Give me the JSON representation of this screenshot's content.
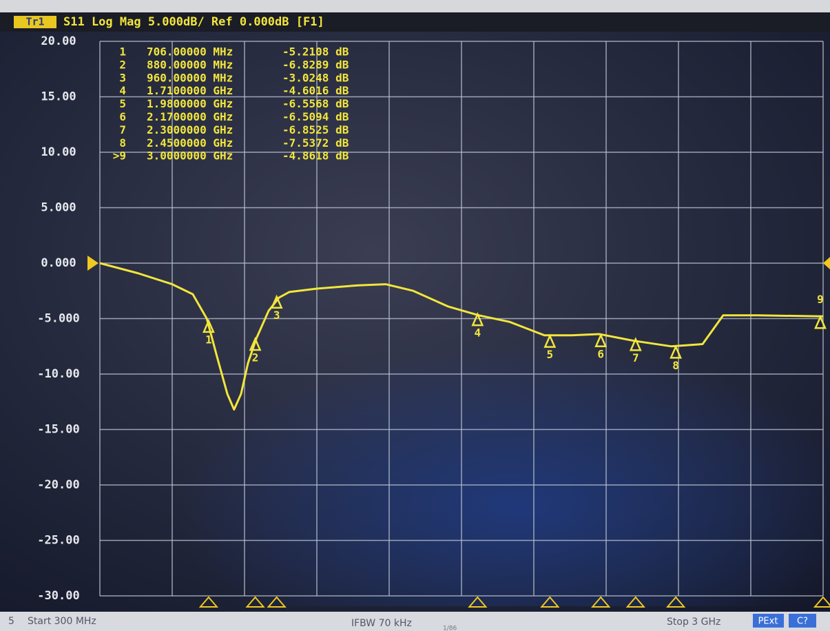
{
  "chart_data": {
    "type": "line",
    "trace_label": "Tr1",
    "title": "S11 Log Mag 5.000dB/ Ref 0.000dB [F1]",
    "ref_level": 0,
    "xlim": [
      300,
      3000
    ],
    "xticks": [
      300,
      570,
      840,
      1110,
      1380,
      1650,
      1920,
      2190,
      2460,
      2730,
      3000
    ],
    "ylim": [
      -30,
      20
    ],
    "yticks": [
      {
        "value": 20,
        "label": "20.00"
      },
      {
        "value": 15,
        "label": "15.00"
      },
      {
        "value": 10,
        "label": "10.00"
      },
      {
        "value": 5,
        "label": "5.000"
      },
      {
        "value": 0,
        "label": "0.000"
      },
      {
        "value": -5,
        "label": "-5.000"
      },
      {
        "value": -10,
        "label": "-10.00"
      },
      {
        "value": -15,
        "label": "-15.00"
      },
      {
        "value": -20,
        "label": "-20.00"
      },
      {
        "value": -25,
        "label": "-25.00"
      },
      {
        "value": -30,
        "label": "-30.00"
      }
    ],
    "grid": true,
    "series": [
      {
        "color": "#f2e63c",
        "x": [
          300,
          441,
          570,
          647,
          699,
          737,
          776,
          801,
          827,
          853,
          884,
          930,
          969,
          1007,
          1110,
          1264,
          1367,
          1470,
          1599,
          1714,
          1830,
          1959,
          2061,
          2164,
          2293,
          2434,
          2550,
          2627,
          2756,
          3000
        ],
        "values": [
          0,
          -0.9,
          -1.9,
          -2.8,
          -5.0,
          -8.4,
          -11.8,
          -13.2,
          -11.8,
          -9.0,
          -6.8,
          -4.3,
          -3.1,
          -2.6,
          -2.3,
          -2.0,
          -1.9,
          -2.5,
          -3.9,
          -4.7,
          -5.3,
          -6.5,
          -6.5,
          -6.4,
          -7.0,
          -7.5,
          -7.3,
          -4.7,
          -4.7,
          -4.8
        ]
      }
    ],
    "markers": {
      "names": [
        "1",
        "2",
        "3",
        "4",
        "5",
        "6",
        "7",
        "8",
        "9"
      ],
      "table_numbers": [
        "1",
        "2",
        "3",
        "4",
        "5",
        "6",
        "7",
        "8",
        ">9"
      ],
      "x": [
        706,
        880,
        960,
        1710,
        1980,
        2170,
        2300,
        2450,
        3000
      ],
      "x_labels": [
        "706.00000 MHz",
        "880.00000 MHz",
        "960.00000 MHz",
        "1.7100000 GHz",
        "1.9800000 GHz",
        "2.1700000 GHz",
        "2.3000000 GHz",
        "2.4500000 GHz",
        "3.0000000 GHz"
      ],
      "values": [
        -5.2108,
        -6.8289,
        -3.0248,
        -4.6016,
        -6.5568,
        -6.5094,
        -6.8525,
        -7.5372,
        -4.8618
      ],
      "value_labels": [
        "-5.2108 dB",
        "-6.8289 dB",
        "-3.0248 dB",
        "-4.6016 dB",
        "-6.5568 dB",
        "-6.5094 dB",
        "-6.8525 dB",
        "-7.5372 dB",
        "-4.8618 dB"
      ]
    },
    "status": {
      "channel": "5",
      "start": "Start 300 MHz",
      "ifbw": "IFBW 70 kHz",
      "page": "1/86",
      "stop": "Stop 3 GHz",
      "pext": "PExt",
      "cal": "C?"
    }
  }
}
